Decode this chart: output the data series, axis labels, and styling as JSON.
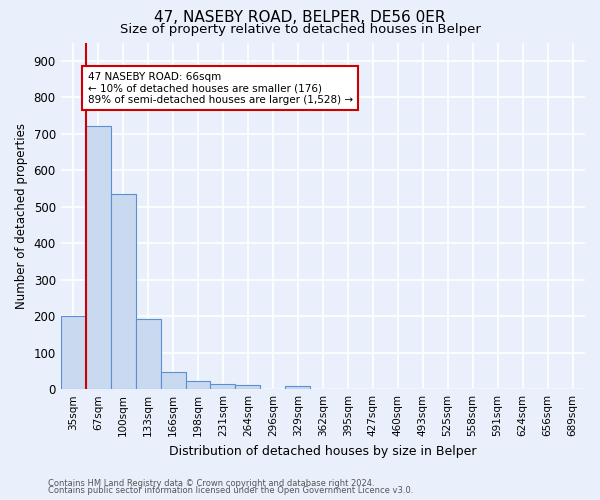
{
  "title1": "47, NASEBY ROAD, BELPER, DE56 0ER",
  "title2": "Size of property relative to detached houses in Belper",
  "xlabel": "Distribution of detached houses by size in Belper",
  "ylabel": "Number of detached properties",
  "bin_labels": [
    "35sqm",
    "67sqm",
    "100sqm",
    "133sqm",
    "166sqm",
    "198sqm",
    "231sqm",
    "264sqm",
    "296sqm",
    "329sqm",
    "362sqm",
    "395sqm",
    "427sqm",
    "460sqm",
    "493sqm",
    "525sqm",
    "558sqm",
    "591sqm",
    "624sqm",
    "656sqm",
    "689sqm"
  ],
  "bar_heights": [
    200,
    720,
    535,
    193,
    47,
    22,
    15,
    12,
    0,
    10,
    0,
    0,
    0,
    0,
    0,
    0,
    0,
    0,
    0,
    0,
    0
  ],
  "bar_color": "#c9d9f0",
  "bar_edge_color": "#5b8fd4",
  "vline_color": "#cc0000",
  "annotation_text_line1": "47 NASEBY ROAD: 66sqm",
  "annotation_text_line2": "← 10% of detached houses are smaller (176)",
  "annotation_text_line3": "89% of semi-detached houses are larger (1,528) →",
  "annotation_box_color": "#ffffff",
  "annotation_box_edge": "#cc0000",
  "ylim": [
    0,
    950
  ],
  "yticks": [
    0,
    100,
    200,
    300,
    400,
    500,
    600,
    700,
    800,
    900
  ],
  "footnote1": "Contains HM Land Registry data © Crown copyright and database right 2024.",
  "footnote2": "Contains public sector information licensed under the Open Government Licence v3.0.",
  "bg_color": "#eaf0fb",
  "grid_color": "#ffffff",
  "title1_fontsize": 11,
  "title2_fontsize": 9.5,
  "ylabel_fontsize": 8.5,
  "xlabel_fontsize": 9,
  "tick_fontsize": 7.5,
  "ytick_fontsize": 8.5,
  "annotation_fontsize": 7.5,
  "footnote_fontsize": 6.0
}
